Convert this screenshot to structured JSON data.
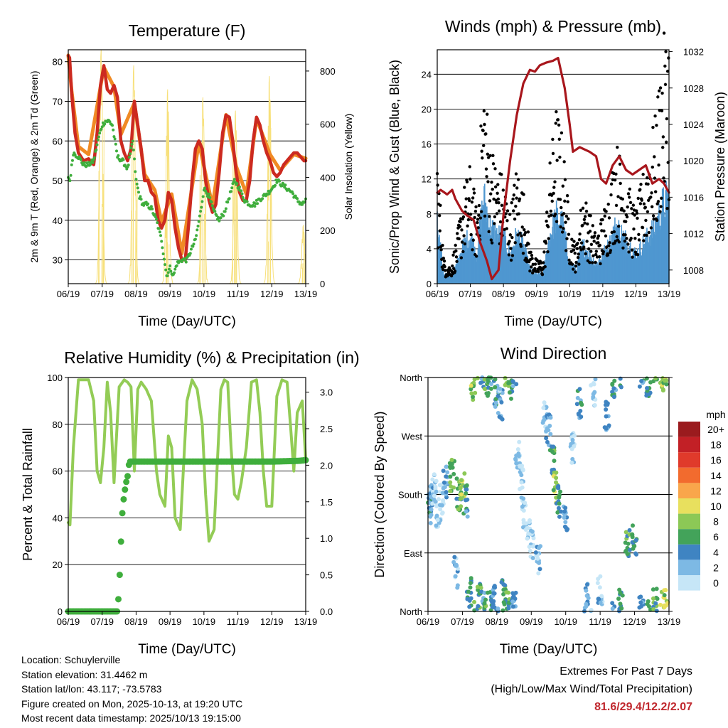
{
  "colors": {
    "temp_red": "#cc2a20",
    "temp_orange": "#f08a24",
    "dewpoint_green": "#3fae3c",
    "solar_yellow": "#f7e07a",
    "wind_black": "#000000",
    "wind_blue": "#4f97d0",
    "pressure_maroon": "#a8161c",
    "rh_green": "#93cc56",
    "precip_green": "#3fae3c",
    "extremes_red": "#c0282e"
  },
  "chart_data": [
    {
      "id": "temperature",
      "type": "line",
      "title": "Temperature (F)",
      "xlabel": "Time (Day/UTC)",
      "ylabel": "2m & 9m T (Red, Orange) & 2m Td (Green)",
      "y2label": "Solar Insolation (Yellow)",
      "x_ticks": [
        "06/19",
        "07/19",
        "08/19",
        "09/19",
        "10/19",
        "11/19",
        "12/19",
        "13/19"
      ],
      "xlim": [
        0,
        7
      ],
      "ylim": [
        24,
        83
      ],
      "y_ticks": [
        30,
        40,
        50,
        60,
        70,
        80
      ],
      "y2lim": [
        0,
        880
      ],
      "y2_ticks": [
        0,
        200,
        400,
        600,
        800
      ],
      "series": [
        {
          "name": "2m T",
          "color": "#cc2a20",
          "x": [
            0,
            0.04,
            0.1,
            0.2,
            0.3,
            0.45,
            0.6,
            0.75,
            0.85,
            0.95,
            1.05,
            1.15,
            1.25,
            1.35,
            1.45,
            1.55,
            1.65,
            1.75,
            1.85,
            1.95,
            2.05,
            2.15,
            2.25,
            2.35,
            2.45,
            2.55,
            2.65,
            2.75,
            2.85,
            2.95,
            3.05,
            3.15,
            3.25,
            3.35,
            3.45,
            3.55,
            3.65,
            3.75,
            3.85,
            3.95,
            4.05,
            4.15,
            4.25,
            4.35,
            4.45,
            4.55,
            4.65,
            4.75,
            4.85,
            4.95,
            5.05,
            5.15,
            5.25,
            5.35,
            5.45,
            5.55,
            5.65,
            5.75,
            5.85,
            5.95,
            6.05,
            6.15,
            6.25,
            6.35,
            6.45,
            6.55,
            6.65,
            6.75,
            6.85,
            6.95,
            7.0
          ],
          "values": [
            81.5,
            81,
            72,
            62,
            57,
            55,
            55.5,
            54,
            62,
            74,
            79,
            73,
            72,
            74,
            71,
            60,
            57,
            55,
            58,
            70,
            64,
            58,
            50,
            50,
            47,
            46,
            40,
            38,
            40,
            47,
            45,
            38,
            33,
            30,
            30,
            39,
            50,
            58,
            60,
            58,
            50,
            45,
            42,
            44,
            52,
            62,
            66.5,
            66,
            60,
            52,
            47,
            45,
            45,
            50,
            60,
            66,
            64,
            60,
            57,
            55,
            52,
            51,
            52,
            54,
            55,
            56,
            57,
            57,
            56,
            55,
            55
          ]
        },
        {
          "name": "9m T",
          "color": "#f08a24",
          "x": [
            0,
            0.1,
            0.3,
            0.6,
            0.95,
            1.05,
            1.35,
            1.55,
            1.95,
            2.25,
            2.55,
            2.75,
            3.05,
            3.35,
            3.85,
            4.25,
            4.65,
            4.95,
            5.25,
            5.55,
            5.95,
            6.25,
            6.65,
            7.0
          ],
          "values": [
            81,
            72,
            58,
            56,
            73,
            78,
            73,
            61,
            69,
            51,
            47,
            39,
            46,
            31,
            59,
            43,
            66,
            53,
            46,
            65,
            56,
            52,
            56,
            55
          ]
        },
        {
          "name": "2m Td",
          "color": "#3fae3c",
          "x": [
            0,
            0.05,
            0.15,
            0.3,
            0.45,
            0.6,
            0.75,
            0.9,
            1.0,
            1.1,
            1.2,
            1.3,
            1.45,
            1.6,
            1.75,
            1.9,
            2.0,
            2.1,
            2.2,
            2.3,
            2.45,
            2.6,
            2.75,
            2.9,
            3.0,
            3.1,
            3.2,
            3.35,
            3.5,
            3.6,
            3.75,
            3.9,
            4.0,
            4.15,
            4.3,
            4.45,
            4.6,
            4.75,
            4.9,
            5.05,
            5.2,
            5.35,
            5.5,
            5.6,
            5.75,
            5.9,
            6.0,
            6.15,
            6.3,
            6.45,
            6.6,
            6.75,
            6.9,
            7.0
          ],
          "values": [
            51,
            50,
            57,
            56,
            54,
            54,
            55,
            61,
            64,
            65,
            65,
            64,
            56,
            55,
            53,
            60,
            50,
            46,
            44,
            44,
            43,
            40,
            35,
            26,
            28,
            26,
            29,
            30,
            30,
            32,
            35,
            42,
            48,
            46,
            42,
            40,
            42,
            46,
            50,
            48,
            45,
            44,
            44,
            45,
            46,
            47,
            48,
            50,
            49,
            48,
            47,
            45,
            44,
            45
          ]
        },
        {
          "name": "Solar Insolation",
          "color": "#f7e07a",
          "axis": "y2",
          "peaks_x": [
            0.97,
            1.93,
            2.93,
            3.97,
            4.93,
            5.93,
            6.93
          ],
          "peaks": [
            880,
            820,
            730,
            700,
            650,
            780,
            220
          ]
        }
      ]
    },
    {
      "id": "winds",
      "type": "scatter",
      "title": "Winds (mph) & Pressure (mb)",
      "xlabel": "Time (Day/UTC)",
      "ylabel": "Sonic/Prop Wind & Gust (Blue, Black)",
      "y2label": "Station Pressure (Maroon)",
      "x_ticks": [
        "06/19",
        "07/19",
        "08/19",
        "09/19",
        "10/19",
        "11/19",
        "12/19",
        "13/19"
      ],
      "xlim": [
        0,
        7
      ],
      "ylim": [
        0,
        26.8
      ],
      "y_ticks": [
        0,
        4,
        8,
        12,
        16,
        20,
        24
      ],
      "y2lim": [
        1006.5,
        1032.2
      ],
      "y2_ticks": [
        1008,
        1012,
        1016,
        1020,
        1024,
        1028,
        1032
      ],
      "series": [
        {
          "name": "Gust",
          "color": "#000000",
          "x": [
            0,
            0.2,
            0.4,
            0.6,
            0.8,
            1.0,
            1.2,
            1.4,
            1.6,
            1.8,
            2.0,
            2.2,
            2.4,
            2.6,
            2.8,
            3.0,
            3.2,
            3.4,
            3.6,
            3.8,
            4.0,
            4.2,
            4.4,
            4.6,
            4.8,
            5.0,
            5.2,
            5.4,
            5.6,
            5.8,
            6.0,
            6.2,
            6.4,
            6.6,
            6.8,
            7.0
          ],
          "values": [
            11,
            2,
            1.5,
            4,
            8,
            10,
            6,
            18,
            12,
            10,
            9,
            6,
            10,
            8,
            3,
            2,
            2,
            10,
            15,
            12,
            5,
            3,
            8,
            6,
            4,
            6,
            8,
            12,
            10,
            8,
            6,
            9,
            12,
            14,
            20,
            22
          ]
        },
        {
          "name": "Wind",
          "color": "#4f97d0",
          "x": [
            0,
            0.2,
            0.4,
            0.6,
            0.8,
            1.0,
            1.2,
            1.4,
            1.6,
            1.8,
            2.0,
            2.2,
            2.4,
            2.6,
            2.8,
            3.0,
            3.2,
            3.4,
            3.6,
            3.8,
            4.0,
            4.2,
            4.4,
            4.6,
            4.8,
            5.0,
            5.2,
            5.4,
            5.6,
            5.8,
            6.0,
            6.2,
            6.4,
            6.6,
            6.8,
            7.0
          ],
          "values": [
            6,
            1,
            0.8,
            2,
            4,
            5,
            3,
            9,
            6,
            5,
            5,
            3,
            5,
            4,
            1.5,
            1,
            1,
            5,
            7,
            6,
            2,
            1.5,
            4,
            3,
            2,
            3,
            4,
            6,
            5,
            4,
            3,
            4,
            5,
            6,
            8,
            9
          ]
        },
        {
          "name": "Station Pressure",
          "color": "#a8161c",
          "axis": "y2",
          "x": [
            0,
            0.1,
            0.3,
            0.45,
            0.55,
            0.75,
            0.9,
            1.1,
            1.3,
            1.5,
            1.65,
            1.85,
            2.0,
            2.2,
            2.4,
            2.6,
            2.8,
            2.95,
            3.1,
            3.3,
            3.5,
            3.65,
            3.85,
            4.0,
            4.1,
            4.3,
            4.6,
            4.8,
            4.95,
            5.1,
            5.3,
            5.5,
            5.7,
            5.9,
            6.1,
            6.3,
            6.5,
            6.7,
            6.85,
            7.0
          ],
          "values": [
            1016.5,
            1016.8,
            1016.3,
            1016.8,
            1015.8,
            1014.5,
            1014.0,
            1013.5,
            1011.0,
            1009.0,
            1007.0,
            1008.0,
            1014.0,
            1020.0,
            1025.0,
            1028.5,
            1030.0,
            1029.8,
            1030.5,
            1030.8,
            1031.0,
            1031.3,
            1028.0,
            1024.0,
            1021.0,
            1021.5,
            1021.0,
            1020.5,
            1018.0,
            1017.5,
            1019.5,
            1020.5,
            1019.0,
            1018.5,
            1019.0,
            1019.5,
            1017.5,
            1018.0,
            1017.5,
            1016.5
          ]
        }
      ]
    },
    {
      "id": "humidity",
      "type": "line",
      "title": "Relative Humidity (%) & Precipitation (in)",
      "xlabel": "Time (Day/UTC)",
      "ylabel": "Percent & Total Rainfall",
      "x_ticks": [
        "06/19",
        "07/19",
        "08/19",
        "09/19",
        "10/19",
        "11/19",
        "12/19",
        "13/19"
      ],
      "xlim": [
        0,
        7
      ],
      "ylim": [
        0,
        100
      ],
      "y_ticks": [
        0,
        20,
        40,
        60,
        80,
        100
      ],
      "y2lim": [
        0,
        3.2
      ],
      "y2_ticks": [
        0.0,
        0.5,
        1.0,
        1.5,
        2.0,
        2.5,
        3.0
      ],
      "series": [
        {
          "name": "Relative Humidity",
          "color": "#93cc56",
          "x": [
            0,
            0.05,
            0.15,
            0.3,
            0.6,
            0.75,
            0.85,
            0.95,
            1.05,
            1.15,
            1.25,
            1.35,
            1.5,
            1.65,
            1.75,
            1.85,
            1.95,
            2.05,
            2.15,
            2.3,
            2.45,
            2.6,
            2.7,
            2.85,
            2.95,
            3.05,
            3.15,
            3.3,
            3.5,
            3.65,
            3.8,
            3.95,
            4.05,
            4.15,
            4.3,
            4.5,
            4.6,
            4.7,
            4.8,
            4.9,
            5.0,
            5.1,
            5.25,
            5.4,
            5.55,
            5.65,
            5.75,
            5.85,
            6.0,
            6.15,
            6.3,
            6.45,
            6.55,
            6.65,
            6.75,
            6.9,
            7.0
          ],
          "values": [
            38,
            37,
            70,
            99,
            99,
            90,
            60,
            55,
            70,
            98,
            85,
            55,
            96,
            99,
            98,
            96,
            60,
            95,
            98,
            95,
            90,
            60,
            50,
            45,
            75,
            70,
            40,
            35,
            90,
            99,
            95,
            80,
            50,
            30,
            35,
            95,
            99,
            98,
            70,
            50,
            48,
            55,
            70,
            98,
            99,
            85,
            60,
            45,
            45,
            92,
            99,
            98,
            80,
            60,
            85,
            90,
            65
          ]
        },
        {
          "name": "Total Precipitation",
          "color": "#3fae3c",
          "axis": "y2",
          "x": [
            0,
            0.5,
            1.0,
            1.45,
            1.5,
            1.55,
            1.6,
            1.65,
            1.7,
            1.75,
            1.8,
            2.0,
            3.0,
            4.0,
            5.0,
            6.0,
            6.8,
            7.0
          ],
          "values": [
            0,
            0,
            0,
            0,
            0.3,
            0.9,
            1.4,
            1.6,
            1.75,
            1.85,
            2.05,
            2.05,
            2.05,
            2.05,
            2.05,
            2.05,
            2.06,
            2.07
          ]
        }
      ]
    },
    {
      "id": "wind_direction",
      "type": "scatter",
      "title": "Wind Direction",
      "xlabel": "Time (Day/UTC)",
      "ylabel": "Direction (Colored By Speed)",
      "x_ticks": [
        "06/19",
        "07/19",
        "08/19",
        "09/19",
        "10/19",
        "11/19",
        "12/19",
        "13/19"
      ],
      "xlim": [
        0,
        7
      ],
      "ylim": [
        0,
        360
      ],
      "y_tick_labels": [
        "North",
        "East",
        "South",
        "West",
        "North"
      ],
      "y_tick_values": [
        0,
        90,
        180,
        270,
        360
      ],
      "legend_title": "mph",
      "legend_labels": [
        "20+",
        "18",
        "16",
        "14",
        "12",
        "10",
        "8",
        "6",
        "4",
        "2",
        "0"
      ],
      "legend_colors": [
        "#9a1b1e",
        "#c22026",
        "#e03a2b",
        "#f26b2e",
        "#f9a64b",
        "#e8e05e",
        "#8cc856",
        "#43a35a",
        "#3f84c2",
        "#7db9e4",
        "#c6e6f7"
      ],
      "points_x": [
        0.05,
        0.1,
        0.2,
        0.3,
        0.4,
        0.5,
        0.7,
        0.8,
        0.9,
        1.0,
        1.1,
        1.2,
        1.3,
        1.5,
        1.6,
        1.7,
        1.8,
        1.9,
        2.0,
        2.1,
        2.2,
        2.3,
        2.4,
        2.5,
        2.6,
        2.7,
        2.8,
        2.9,
        3.0,
        3.2,
        3.4,
        3.5,
        3.6,
        3.7,
        3.8,
        4.0,
        4.2,
        4.4,
        4.6,
        4.8,
        5.0,
        5.2,
        5.4,
        5.6,
        5.8,
        6.0,
        6.2,
        6.4,
        6.6,
        6.8,
        6.9
      ],
      "points_dir": [
        160,
        170,
        190,
        150,
        175,
        200,
        210,
        60,
        180,
        190,
        170,
        30,
        350,
        20,
        10,
        355,
        5,
        15,
        340,
        320,
        25,
        10,
        350,
        5,
        240,
        200,
        150,
        120,
        100,
        80,
        300,
        280,
        230,
        190,
        170,
        150,
        250,
        320,
        20,
        340,
        30,
        300,
        350,
        10,
        100,
        110,
        5,
        355,
        10,
        5,
        8
      ],
      "points_speed": [
        4,
        2,
        1,
        0,
        1,
        3,
        7,
        2,
        6,
        9,
        4,
        5,
        8,
        6,
        4,
        7,
        5,
        3,
        4,
        2,
        6,
        7,
        5,
        3,
        1,
        0,
        1,
        0,
        1,
        2,
        1,
        3,
        6,
        8,
        5,
        3,
        1,
        4,
        3,
        1,
        2,
        3,
        4,
        5,
        6,
        5,
        4,
        5,
        6,
        9,
        8
      ]
    }
  ],
  "meta": {
    "location": "Location: Schuylerville",
    "elevation": "Station elevation: 31.4462 m",
    "latlon": "Station lat/lon: 43.117; -73.5783",
    "created": "Figure created on Mon, 2025-10-13, at 19:20 UTC",
    "recent": "Most recent data timestamp: 2025/10/13 19:15:00"
  },
  "extremes": {
    "title": "Extremes For Past 7 Days",
    "subtitle": "(High/Low/Max Wind/Total Precipitation)",
    "values": "81.6/29.4/12.2/2.07"
  }
}
